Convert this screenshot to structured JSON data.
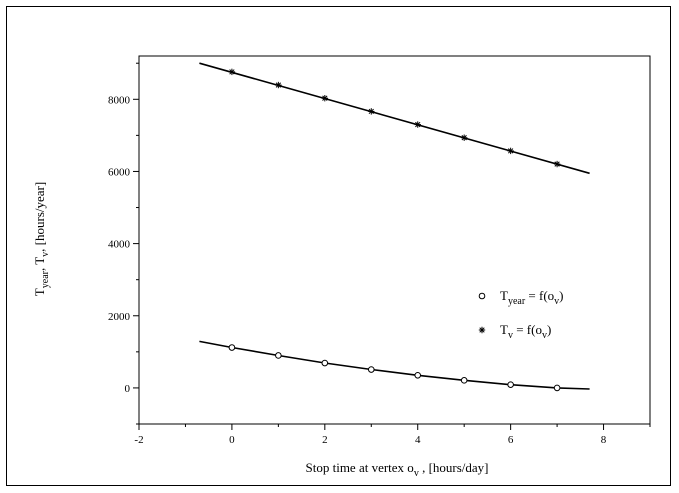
{
  "chart_data": {
    "type": "line",
    "xlabel": {
      "main": "Stop time at vertex o",
      "sub": "v",
      "tail": " ,  [hours/day]"
    },
    "ylabel": {
      "p1": "T",
      "p1_sub": "year",
      "p2": ", T",
      "p2_sub": "v",
      "p3": ",  [hours/year]"
    },
    "xlim": [
      -2,
      9
    ],
    "ylim": [
      -1000,
      9200
    ],
    "x_ticks": [
      -2,
      0,
      2,
      4,
      6,
      8
    ],
    "y_ticks": [
      0,
      2000,
      4000,
      6000,
      8000
    ],
    "grid": false,
    "legend_position": "right-middle",
    "series": [
      {
        "id": "tv",
        "marker": "asterisk",
        "legend": {
          "t": "T",
          "sub": "v",
          "eq": "  = f(o",
          "arg_sub": "v",
          "close": ")"
        },
        "fit": {
          "x": [
            -0.7,
            7.7
          ],
          "y": [
            9000,
            5950
          ]
        },
        "points": {
          "x": [
            0,
            1,
            2,
            3,
            4,
            5,
            6,
            7
          ],
          "y": [
            8760,
            8395,
            8030,
            7665,
            7300,
            6935,
            6570,
            6205
          ]
        }
      },
      {
        "id": "tyear",
        "marker": "circle",
        "legend": {
          "t": "T",
          "sub": "year",
          "eq": " = f(o",
          "arg_sub": "v",
          "close": ")"
        },
        "fit": {
          "x": [
            -0.7,
            0,
            1,
            2,
            3,
            4,
            5,
            6,
            7,
            7.7
          ],
          "y": [
            1290,
            1120,
            900,
            690,
            510,
            350,
            210,
            90,
            0,
            -30
          ]
        },
        "points": {
          "x": [
            0,
            1,
            2,
            3,
            4,
            5,
            6,
            7
          ],
          "y": [
            1120,
            900,
            690,
            510,
            350,
            210,
            90,
            0
          ]
        }
      }
    ]
  }
}
